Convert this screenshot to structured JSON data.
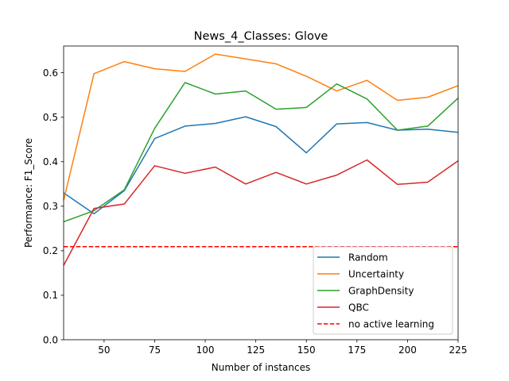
{
  "chart_data": {
    "type": "line",
    "title": "News_4_Classes: Glove",
    "xlabel": "Number of instances",
    "ylabel": "Performance: F1_Score",
    "xlim": [
      30,
      225
    ],
    "ylim": [
      0.0,
      0.66
    ],
    "xticks": [
      50,
      75,
      100,
      125,
      150,
      175,
      200,
      225
    ],
    "yticks": [
      0.0,
      0.1,
      0.2,
      0.3,
      0.4,
      0.5,
      0.6
    ],
    "ytick_labels": [
      "0.0",
      "0.1",
      "0.2",
      "0.3",
      "0.4",
      "0.5",
      "0.6"
    ],
    "grid": false,
    "legend_position": "bottom-right",
    "x": [
      30,
      45,
      60,
      75,
      90,
      105,
      120,
      135,
      150,
      165,
      180,
      195,
      210,
      225
    ],
    "series": [
      {
        "name": "Random",
        "color": "#1f77b4",
        "style": "solid",
        "values": [
          0.33,
          0.283,
          0.335,
          0.452,
          0.48,
          0.486,
          0.501,
          0.479,
          0.42,
          0.485,
          0.488,
          0.471,
          0.473,
          0.466
        ]
      },
      {
        "name": "Uncertainty",
        "color": "#ff7f0e",
        "style": "solid",
        "values": [
          0.313,
          0.598,
          0.625,
          0.609,
          0.603,
          0.642,
          0.631,
          0.62,
          0.592,
          0.559,
          0.583,
          0.538,
          0.545,
          0.571
        ]
      },
      {
        "name": "GraphDensity",
        "color": "#2ca02c",
        "style": "solid",
        "values": [
          0.265,
          0.29,
          0.337,
          0.475,
          0.578,
          0.552,
          0.559,
          0.518,
          0.522,
          0.575,
          0.541,
          0.471,
          0.48,
          0.543
        ]
      },
      {
        "name": "QBC",
        "color": "#d62728",
        "style": "solid",
        "values": [
          0.167,
          0.295,
          0.305,
          0.391,
          0.374,
          0.388,
          0.35,
          0.376,
          0.35,
          0.37,
          0.404,
          0.349,
          0.354,
          0.402
        ]
      },
      {
        "name": "no active learning",
        "color": "#ff0000",
        "style": "dashed",
        "values": [
          0.209,
          0.209,
          0.209,
          0.209,
          0.209,
          0.209,
          0.209,
          0.209,
          0.209,
          0.209,
          0.209,
          0.209,
          0.209,
          0.209
        ]
      }
    ]
  }
}
